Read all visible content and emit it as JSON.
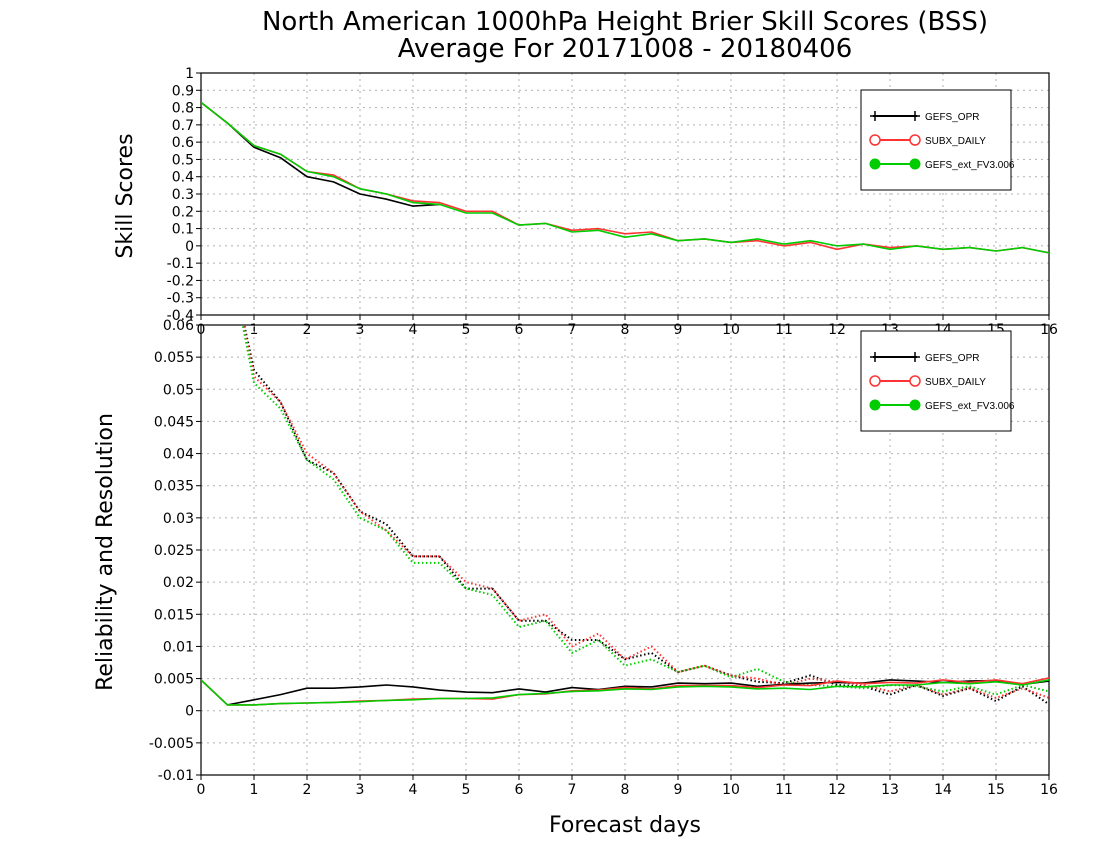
{
  "title": "North American 1000hPa Height Brier Skill Scores (BSS)",
  "subtitle": "Average For 20171008 - 20180406",
  "colors": {
    "GEFS_OPR": "#000000",
    "SUBX_DAILY": "#ff3333",
    "GEFS_ext_FV3.006": "#00cc00"
  },
  "chart_data": [
    {
      "type": "line",
      "title": "North American 1000hPa Height Brier Skill Scores (BSS)",
      "subtitle": "Average For 20171008 - 20180406",
      "xlabel": "",
      "ylabel": "Skill Scores",
      "xlim": [
        0,
        16
      ],
      "ylim": [
        -0.4,
        1.0
      ],
      "grid": true,
      "legend": "top-right",
      "xticks": [
        "0",
        "1",
        "2",
        "3",
        "4",
        "5",
        "6",
        "7",
        "8",
        "9",
        "10",
        "11",
        "12",
        "13",
        "14",
        "15",
        "16"
      ],
      "yticks": [
        "-0.4",
        "-0.3",
        "-0.2",
        "-0.1",
        "0",
        "0.1",
        "0.2",
        "0.3",
        "0.4",
        "0.5",
        "0.6",
        "0.7",
        "0.8",
        "0.9",
        "1"
      ],
      "x": [
        0,
        0.5,
        1,
        1.5,
        2,
        2.5,
        3,
        3.5,
        4,
        4.5,
        5,
        5.5,
        6,
        6.5,
        7,
        7.5,
        8,
        8.5,
        9,
        9.5,
        10,
        10.5,
        11,
        11.5,
        12,
        12.5,
        13,
        13.5,
        14,
        14.5,
        15,
        15.5,
        16
      ],
      "series": [
        {
          "name": "GEFS_OPR",
          "marker": "plus",
          "color": "#000000",
          "values": [
            0.83,
            0.71,
            0.57,
            0.51,
            0.4,
            0.37,
            0.3,
            0.27,
            0.23,
            0.24,
            null,
            null,
            null,
            null,
            null,
            null,
            null,
            null,
            null,
            null,
            null,
            null,
            null,
            null,
            null,
            null,
            null,
            null,
            null,
            null,
            null,
            null,
            null
          ]
        },
        {
          "name": "SUBX_DAILY",
          "marker": "open-circle",
          "color": "#ff3333",
          "values": [
            0.83,
            0.71,
            0.58,
            0.53,
            0.43,
            0.41,
            0.33,
            0.3,
            0.26,
            0.25,
            0.2,
            0.2,
            0.12,
            0.13,
            0.09,
            0.1,
            0.07,
            0.08,
            0.03,
            0.04,
            0.02,
            0.03,
            0.0,
            0.02,
            -0.02,
            0.01,
            -0.01,
            0.0,
            -0.02,
            -0.01,
            -0.03,
            -0.01,
            -0.04
          ]
        },
        {
          "name": "GEFS_ext_FV3.006",
          "marker": "filled-circle",
          "color": "#00cc00",
          "values": [
            0.83,
            0.71,
            0.58,
            0.53,
            0.43,
            0.4,
            0.33,
            0.3,
            0.25,
            0.24,
            0.19,
            0.19,
            0.12,
            0.13,
            0.08,
            0.09,
            0.05,
            0.07,
            0.03,
            0.04,
            0.02,
            0.04,
            0.01,
            0.03,
            0.0,
            0.01,
            -0.02,
            0.0,
            -0.02,
            -0.01,
            -0.03,
            -0.01,
            -0.04
          ]
        }
      ]
    },
    {
      "type": "line",
      "xlabel": "Forecast days",
      "ylabel": "Reliability and Resolution",
      "xlim": [
        0,
        16
      ],
      "ylim": [
        -0.01,
        0.06
      ],
      "grid": true,
      "legend": "top-right",
      "xticks": [
        "0",
        "1",
        "2",
        "3",
        "4",
        "5",
        "6",
        "7",
        "8",
        "9",
        "10",
        "11",
        "12",
        "13",
        "14",
        "15",
        "16"
      ],
      "yticks": [
        "-0.01",
        "-0.005",
        "0",
        "0.005",
        "0.01",
        "0.015",
        "0.02",
        "0.025",
        "0.03",
        "0.035",
        "0.04",
        "0.045",
        "0.05",
        "0.055",
        "0.06"
      ],
      "x": [
        0,
        0.5,
        1,
        1.5,
        2,
        2.5,
        3,
        3.5,
        4,
        4.5,
        5,
        5.5,
        6,
        6.5,
        7,
        7.5,
        8,
        8.5,
        9,
        9.5,
        10,
        10.5,
        11,
        11.5,
        12,
        12.5,
        13,
        13.5,
        14,
        14.5,
        15,
        15.5,
        16
      ],
      "solid_series": [
        {
          "name": "GEFS_OPR",
          "color": "#000000",
          "values": [
            0.0048,
            0.0009,
            0.0017,
            0.0025,
            0.0035,
            0.0035,
            0.0037,
            0.004,
            0.0037,
            0.0032,
            0.0029,
            0.0028,
            0.0034,
            0.0029,
            0.0036,
            0.0033,
            0.0038,
            0.0037,
            0.0043,
            0.0042,
            0.0043,
            0.0038,
            0.0041,
            0.0043,
            0.0044,
            0.0043,
            0.0048,
            0.0046,
            0.0044,
            0.0046,
            0.0047,
            0.0041,
            0.0046
          ]
        },
        {
          "name": "SUBX_DAILY",
          "color": "#ff3333",
          "values": [
            0.0048,
            0.0009,
            0.0009,
            0.0011,
            0.0012,
            0.0013,
            0.0015,
            0.0016,
            0.0018,
            0.0019,
            0.0019,
            0.0018,
            0.0025,
            0.0026,
            0.0031,
            0.0032,
            0.0036,
            0.0034,
            0.0039,
            0.0039,
            0.0039,
            0.0036,
            0.004,
            0.0039,
            0.0046,
            0.0042,
            0.0044,
            0.0043,
            0.0048,
            0.0044,
            0.0048,
            0.0042,
            0.0051
          ]
        },
        {
          "name": "GEFS_ext_FV3.006",
          "color": "#00cc00",
          "values": [
            0.0048,
            0.0009,
            0.0009,
            0.0011,
            0.0012,
            0.0013,
            0.0014,
            0.0016,
            0.0017,
            0.0019,
            0.0019,
            0.002,
            0.0025,
            0.0027,
            0.003,
            0.0031,
            0.0034,
            0.0033,
            0.0037,
            0.0038,
            0.0037,
            0.0034,
            0.0035,
            0.0033,
            0.0038,
            0.0037,
            0.004,
            0.004,
            0.0044,
            0.0042,
            0.0045,
            0.004,
            0.0048
          ]
        }
      ],
      "dotted_series": [
        {
          "name": "GEFS_OPR",
          "color": "#000000",
          "values": [
            null,
            0.072,
            0.053,
            0.048,
            0.039,
            0.037,
            0.031,
            0.029,
            0.024,
            0.024,
            0.019,
            0.019,
            0.014,
            0.014,
            0.011,
            0.011,
            0.008,
            0.009,
            0.006,
            0.007,
            0.0055,
            0.0045,
            0.0043,
            0.0055,
            0.004,
            0.0038,
            0.0025,
            0.004,
            0.0023,
            0.0035,
            0.0015,
            0.0038,
            0.001
          ]
        },
        {
          "name": "SUBX_DAILY",
          "color": "#ff3333",
          "values": [
            null,
            0.072,
            0.052,
            0.048,
            0.04,
            0.037,
            0.031,
            0.028,
            0.024,
            0.024,
            0.02,
            0.019,
            0.014,
            0.015,
            0.01,
            0.012,
            0.008,
            0.01,
            0.006,
            0.007,
            0.0055,
            0.005,
            0.004,
            0.005,
            0.0045,
            0.004,
            0.003,
            0.004,
            0.0025,
            0.0035,
            0.002,
            0.0035,
            0.002
          ]
        },
        {
          "name": "GEFS_ext_FV3.006",
          "color": "#00cc00",
          "values": [
            null,
            0.072,
            0.051,
            0.047,
            0.039,
            0.036,
            0.03,
            0.028,
            0.023,
            0.023,
            0.019,
            0.018,
            0.013,
            0.014,
            0.009,
            0.011,
            0.007,
            0.008,
            0.006,
            0.007,
            0.0052,
            0.0065,
            0.0045,
            0.004,
            0.0038,
            0.0035,
            0.004,
            0.0038,
            0.003,
            0.0038,
            0.0025,
            0.004,
            0.003
          ]
        }
      ]
    }
  ],
  "legend": {
    "items": [
      {
        "label": "GEFS_OPR",
        "marker": "plus",
        "color": "#000000"
      },
      {
        "label": "SUBX_DAILY",
        "marker": "open-circle",
        "color": "#ff3333"
      },
      {
        "label": "GEFS_ext_FV3.006",
        "marker": "filled-circle",
        "color": "#00cc00"
      }
    ]
  }
}
